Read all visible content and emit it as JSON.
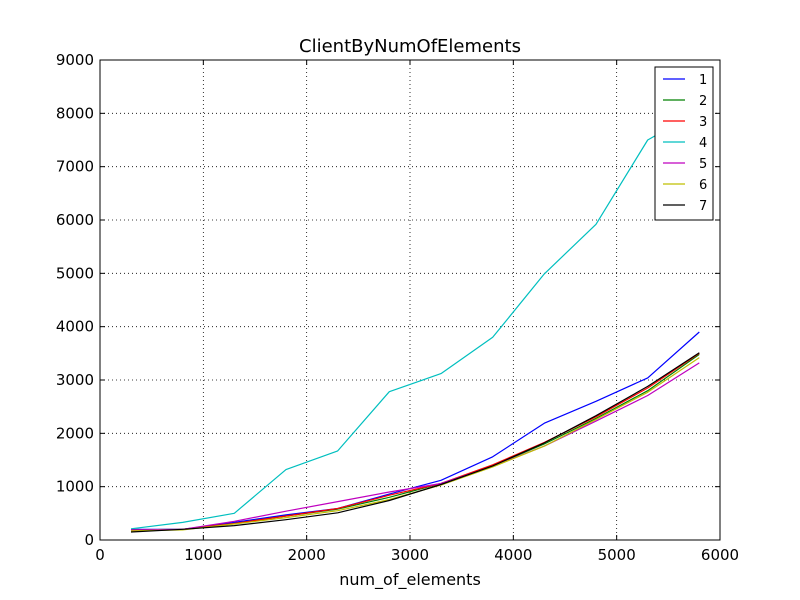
{
  "chart_data": {
    "type": "line",
    "title": "ClientByNumOfElements",
    "xlabel": "num_of_elements",
    "ylabel": "",
    "xlim": [
      0,
      6000
    ],
    "ylim": [
      0,
      9000
    ],
    "xticks": [
      0,
      1000,
      2000,
      3000,
      4000,
      5000,
      6000
    ],
    "yticks": [
      0,
      1000,
      2000,
      3000,
      4000,
      5000,
      6000,
      7000,
      8000,
      9000
    ],
    "grid": true,
    "legend_position": "top-right",
    "x": [
      300,
      800,
      1300,
      1800,
      2300,
      2800,
      3300,
      3800,
      4300,
      4800,
      5300,
      5800
    ],
    "series": [
      {
        "name": "1",
        "color": "#0000ff",
        "values": [
          200,
          200,
          330,
          470,
          590,
          860,
          1120,
          1560,
          2190,
          2600,
          3040,
          3900
        ]
      },
      {
        "name": "2",
        "color": "#008000",
        "values": [
          190,
          200,
          310,
          450,
          580,
          800,
          1060,
          1390,
          1800,
          2280,
          2800,
          3480
        ]
      },
      {
        "name": "3",
        "color": "#ff0000",
        "values": [
          170,
          200,
          310,
          450,
          590,
          840,
          1060,
          1410,
          1830,
          2310,
          2850,
          3500
        ]
      },
      {
        "name": "4",
        "color": "#00bfbf",
        "values": [
          210,
          330,
          500,
          1320,
          1670,
          2780,
          3120,
          3800,
          4990,
          5920,
          7500,
          8050
        ]
      },
      {
        "name": "5",
        "color": "#bf00bf",
        "values": [
          190,
          200,
          350,
          540,
          720,
          900,
          1060,
          1380,
          1760,
          2230,
          2710,
          3320
        ]
      },
      {
        "name": "6",
        "color": "#bfbf00",
        "values": [
          170,
          190,
          300,
          420,
          550,
          760,
          1030,
          1370,
          1760,
          2260,
          2770,
          3420
        ]
      },
      {
        "name": "7",
        "color": "#000000",
        "values": [
          150,
          200,
          270,
          380,
          510,
          740,
          1040,
          1390,
          1820,
          2330,
          2880,
          3510
        ]
      }
    ]
  }
}
